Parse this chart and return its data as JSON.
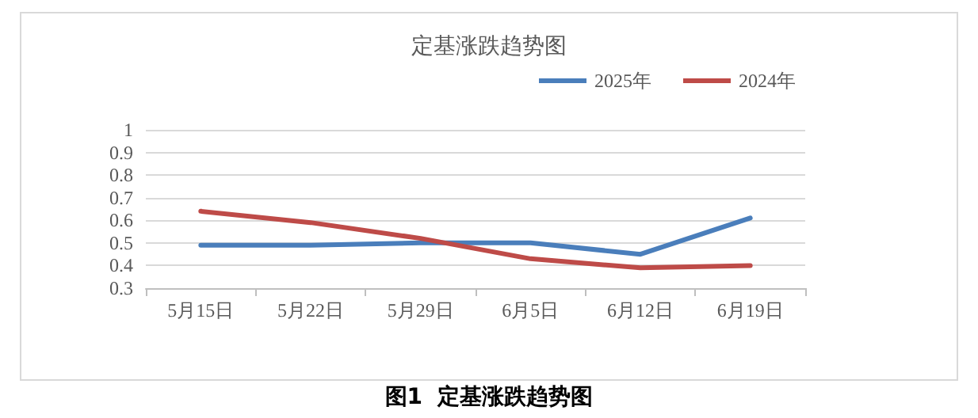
{
  "chart_data": {
    "type": "line",
    "title": "定基涨跌趋势图",
    "categories": [
      "5月15日",
      "5月22日",
      "5月29日",
      "6月5日",
      "6月12日",
      "6月19日"
    ],
    "series": [
      {
        "name": "2025年",
        "color": "#4a7ebb",
        "values": [
          0.49,
          0.49,
          0.5,
          0.5,
          0.45,
          0.61
        ]
      },
      {
        "name": "2024年",
        "color": "#be4b48",
        "values": [
          0.64,
          0.59,
          0.52,
          0.43,
          0.39,
          0.4
        ]
      }
    ],
    "ylim": [
      0.3,
      1
    ],
    "yticks": [
      0.3,
      0.4,
      0.5,
      0.6,
      0.7,
      0.8,
      0.9,
      1
    ],
    "grid": "y",
    "legend": "top right",
    "marker": "none",
    "line_style": "solid",
    "annotations": [
      "图1  定基涨跌趋势图"
    ]
  }
}
